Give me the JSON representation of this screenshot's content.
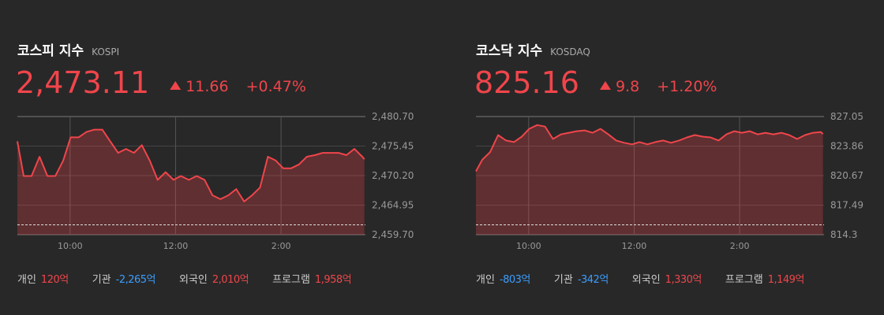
{
  "chart_data": [
    {
      "type": "line",
      "title": "코스피 지수",
      "subtitle": "KOSPI",
      "price": "2,473.11",
      "change": 11.66,
      "change_rate": "+0.47%",
      "color": "#f0454b",
      "grid": true,
      "x": [
        9.0,
        9.12,
        9.27,
        9.42,
        9.57,
        9.72,
        9.87,
        10.01,
        10.16,
        10.31,
        10.46,
        10.61,
        10.76,
        10.91,
        11.06,
        11.21,
        11.36,
        11.51,
        11.66,
        11.81,
        11.96,
        12.1,
        12.25,
        12.4,
        12.55,
        12.7,
        12.85,
        13.0,
        13.15,
        13.3,
        13.45,
        13.6,
        13.75,
        13.9,
        14.04,
        14.19,
        14.34,
        14.49,
        14.64,
        14.79,
        14.94,
        15.09,
        15.24,
        15.39,
        15.54,
        15.58
      ],
      "values": [
        2476.31,
        2470.13,
        2470.13,
        2473.56,
        2470.13,
        2470.13,
        2472.88,
        2477.0,
        2477.0,
        2477.96,
        2478.37,
        2478.37,
        2476.31,
        2474.25,
        2474.94,
        2474.25,
        2475.62,
        2472.88,
        2469.45,
        2470.82,
        2469.45,
        2470.13,
        2469.45,
        2470.13,
        2469.45,
        2466.7,
        2466.01,
        2466.7,
        2467.8,
        2465.6,
        2466.7,
        2468.07,
        2473.56,
        2472.88,
        2471.5,
        2471.5,
        2472.19,
        2473.56,
        2473.84,
        2474.25,
        2474.25,
        2474.25,
        2473.84,
        2474.94,
        2473.56,
        2473.11
      ],
      "xlim": [
        9,
        15.6
      ],
      "xticks": [
        {
          "value": 10,
          "label": "10:00"
        },
        {
          "value": 12,
          "label": "12:00"
        },
        {
          "value": 14,
          "label": "2:00"
        }
      ],
      "ylim": [
        2459.7,
        2480.7
      ],
      "yticks": [
        {
          "value": 2480.7,
          "label": "2,480.70"
        },
        {
          "value": 2475.45,
          "label": "2,475.45"
        },
        {
          "value": 2470.2,
          "label": "2,470.20"
        },
        {
          "value": 2464.95,
          "label": "2,464.95"
        },
        {
          "value": 2459.7,
          "label": "2,459.70"
        }
      ],
      "reference_line": 2461.45,
      "investors": [
        {
          "name": "개인",
          "value": "120억"
        },
        {
          "name": "기관",
          "value": "-2,265억"
        },
        {
          "name": "외국인",
          "value": "2,010억"
        },
        {
          "name": "프로그램",
          "value": "1,958억"
        }
      ]
    },
    {
      "type": "line",
      "title": "코스닥 지수",
      "subtitle": "KOSDAQ",
      "price": "825.16",
      "change": 9.8,
      "change_rate": "+1.20%",
      "color": "#f0454b",
      "grid": true,
      "x": [
        9.0,
        9.12,
        9.27,
        9.42,
        9.57,
        9.72,
        9.87,
        10.01,
        10.16,
        10.31,
        10.46,
        10.61,
        10.76,
        10.91,
        11.06,
        11.21,
        11.36,
        11.51,
        11.66,
        11.81,
        11.96,
        12.1,
        12.25,
        12.4,
        12.55,
        12.7,
        12.85,
        13.0,
        13.15,
        13.3,
        13.45,
        13.6,
        13.75,
        13.9,
        14.04,
        14.19,
        14.34,
        14.49,
        14.64,
        14.79,
        14.94,
        15.09,
        15.24,
        15.39,
        15.54,
        15.58
      ],
      "values": [
        821.13,
        822.38,
        823.22,
        825.05,
        824.47,
        824.3,
        824.88,
        825.72,
        826.13,
        825.97,
        824.63,
        825.13,
        825.3,
        825.47,
        825.55,
        825.3,
        825.72,
        825.13,
        824.47,
        824.22,
        824.05,
        824.3,
        824.05,
        824.3,
        824.47,
        824.22,
        824.47,
        824.8,
        825.05,
        824.88,
        824.8,
        824.47,
        825.13,
        825.47,
        825.3,
        825.47,
        825.13,
        825.3,
        825.13,
        825.3,
        825.05,
        824.63,
        825.05,
        825.3,
        825.38,
        825.16
      ],
      "xlim": [
        9,
        15.6
      ],
      "xticks": [
        {
          "value": 10,
          "label": "10:00"
        },
        {
          "value": 12,
          "label": "12:00"
        },
        {
          "value": 14,
          "label": "2:00"
        }
      ],
      "ylim": [
        814.3,
        827.05
      ],
      "yticks": [
        827.05,
        823.86,
        820.67,
        817.49,
        814.3
      ],
      "reference_line": 815.36,
      "investors": [
        {
          "name": "개인",
          "value": "-803억"
        },
        {
          "name": "기관",
          "value": "-342억"
        },
        {
          "name": "외국인",
          "value": "1,330억"
        },
        {
          "name": "프로그램",
          "value": "1,149억"
        }
      ]
    }
  ]
}
